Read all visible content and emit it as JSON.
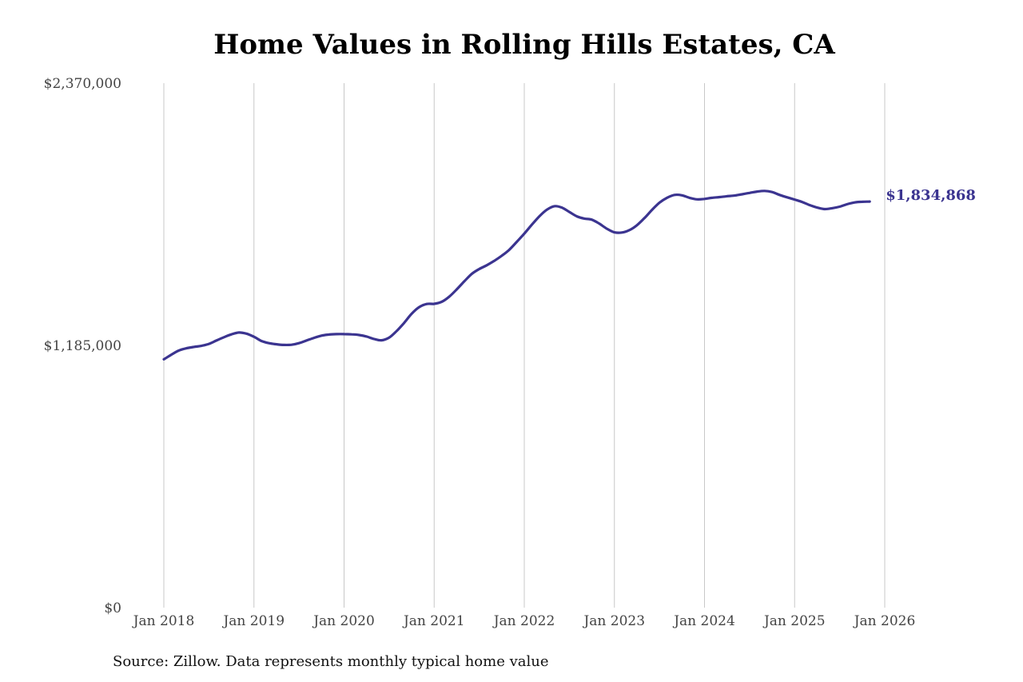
{
  "chart_data": {
    "type": "line",
    "title": "Home Values in Rolling Hills Estates, CA",
    "ylim": [
      0,
      2370000
    ],
    "xlim": [
      "2018-01",
      "2026-01"
    ],
    "y_ticks": [
      {
        "value": 0,
        "label": "$0"
      },
      {
        "value": 1185000,
        "label": "$1,185,000"
      },
      {
        "value": 2370000,
        "label": "$2,370,000"
      }
    ],
    "x_ticks": [
      {
        "value": "2018-01",
        "label": "Jan 2018"
      },
      {
        "value": "2019-01",
        "label": "Jan 2019"
      },
      {
        "value": "2020-01",
        "label": "Jan 2020"
      },
      {
        "value": "2021-01",
        "label": "Jan 2021"
      },
      {
        "value": "2022-01",
        "label": "Jan 2022"
      },
      {
        "value": "2023-01",
        "label": "Jan 2023"
      },
      {
        "value": "2024-01",
        "label": "Jan 2024"
      },
      {
        "value": "2025-01",
        "label": "Jan 2025"
      },
      {
        "value": "2026-01",
        "label": "Jan 2026"
      }
    ],
    "grid": {
      "vertical": true,
      "horizontal": false
    },
    "color": "#3b3490",
    "series": [
      {
        "points": [
          [
            "2018-01",
            1122000
          ],
          [
            "2018-02",
            1143000
          ],
          [
            "2018-03",
            1162000
          ],
          [
            "2018-04",
            1172000
          ],
          [
            "2018-05",
            1178000
          ],
          [
            "2018-06",
            1183000
          ],
          [
            "2018-07",
            1192000
          ],
          [
            "2018-08",
            1207000
          ],
          [
            "2018-09",
            1222000
          ],
          [
            "2018-10",
            1235000
          ],
          [
            "2018-11",
            1243000
          ],
          [
            "2018-12",
            1238000
          ],
          [
            "2019-01",
            1224000
          ],
          [
            "2019-02",
            1205000
          ],
          [
            "2019-03",
            1195000
          ],
          [
            "2019-04",
            1190000
          ],
          [
            "2019-05",
            1187000
          ],
          [
            "2019-06",
            1188000
          ],
          [
            "2019-07",
            1195000
          ],
          [
            "2019-08",
            1207000
          ],
          [
            "2019-09",
            1219000
          ],
          [
            "2019-10",
            1229000
          ],
          [
            "2019-11",
            1234000
          ],
          [
            "2019-12",
            1236000
          ],
          [
            "2020-01",
            1236000
          ],
          [
            "2020-02",
            1235000
          ],
          [
            "2020-03",
            1232000
          ],
          [
            "2020-04",
            1225000
          ],
          [
            "2020-05",
            1214000
          ],
          [
            "2020-06",
            1208000
          ],
          [
            "2020-07",
            1220000
          ],
          [
            "2020-08",
            1250000
          ],
          [
            "2020-09",
            1287000
          ],
          [
            "2020-10",
            1328000
          ],
          [
            "2020-11",
            1358000
          ],
          [
            "2020-12",
            1372000
          ],
          [
            "2021-01",
            1373000
          ],
          [
            "2021-02",
            1382000
          ],
          [
            "2021-03",
            1405000
          ],
          [
            "2021-04",
            1438000
          ],
          [
            "2021-05",
            1474000
          ],
          [
            "2021-06",
            1508000
          ],
          [
            "2021-07",
            1530000
          ],
          [
            "2021-08",
            1547000
          ],
          [
            "2021-09",
            1567000
          ],
          [
            "2021-10",
            1590000
          ],
          [
            "2021-11",
            1617000
          ],
          [
            "2021-12",
            1653000
          ],
          [
            "2022-01",
            1690000
          ],
          [
            "2022-02",
            1730000
          ],
          [
            "2022-03",
            1768000
          ],
          [
            "2022-04",
            1798000
          ],
          [
            "2022-05",
            1814000
          ],
          [
            "2022-06",
            1808000
          ],
          [
            "2022-07",
            1788000
          ],
          [
            "2022-08",
            1768000
          ],
          [
            "2022-09",
            1758000
          ],
          [
            "2022-10",
            1753000
          ],
          [
            "2022-11",
            1735000
          ],
          [
            "2022-12",
            1712000
          ],
          [
            "2023-01",
            1696000
          ],
          [
            "2023-02",
            1695000
          ],
          [
            "2023-03",
            1706000
          ],
          [
            "2023-04",
            1728000
          ],
          [
            "2023-05",
            1760000
          ],
          [
            "2023-06",
            1797000
          ],
          [
            "2023-07",
            1830000
          ],
          [
            "2023-08",
            1852000
          ],
          [
            "2023-09",
            1865000
          ],
          [
            "2023-10",
            1863000
          ],
          [
            "2023-11",
            1852000
          ],
          [
            "2023-12",
            1845000
          ],
          [
            "2024-01",
            1847000
          ],
          [
            "2024-02",
            1852000
          ],
          [
            "2024-03",
            1855000
          ],
          [
            "2024-04",
            1859000
          ],
          [
            "2024-05",
            1862000
          ],
          [
            "2024-06",
            1868000
          ],
          [
            "2024-07",
            1874000
          ],
          [
            "2024-08",
            1880000
          ],
          [
            "2024-09",
            1883000
          ],
          [
            "2024-10",
            1878000
          ],
          [
            "2024-11",
            1865000
          ],
          [
            "2024-12",
            1854000
          ],
          [
            "2025-01",
            1844000
          ],
          [
            "2025-02",
            1833000
          ],
          [
            "2025-03",
            1819000
          ],
          [
            "2025-04",
            1808000
          ],
          [
            "2025-05",
            1801000
          ],
          [
            "2025-06",
            1805000
          ],
          [
            "2025-07",
            1812000
          ],
          [
            "2025-08",
            1823000
          ],
          [
            "2025-09",
            1831000
          ],
          [
            "2025-10",
            1834000
          ],
          [
            "2025-11",
            1834868
          ]
        ]
      }
    ],
    "end_label": "$1,834,868"
  },
  "source": "Source: Zillow. Data represents monthly typical home value"
}
